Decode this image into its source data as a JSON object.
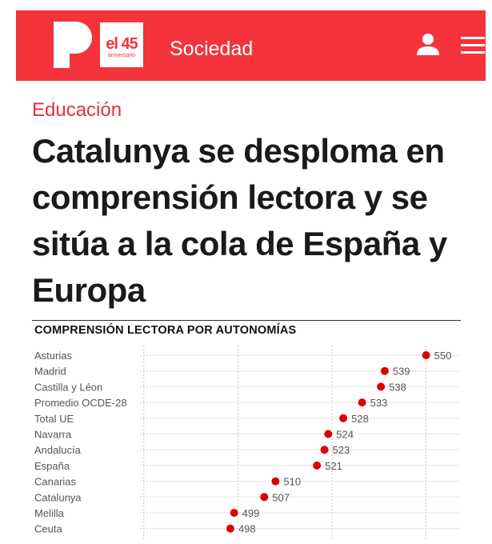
{
  "header": {
    "logo_letter": "P",
    "logo_badge_main": "el 45",
    "logo_badge_sub": "aniversario",
    "section": "Sociedad",
    "icons": [
      "user-icon",
      "hamburger-menu-icon"
    ],
    "background_color": "#f4333b"
  },
  "article": {
    "category": "Educación",
    "headline": "Catalunya se desploma en comprensión lectora y se sitúa a la cola de España y Europa"
  },
  "chart_data": {
    "type": "scatter",
    "title": "COMPRENSIÓN LECTORA POR AUTONOMÍAS",
    "categories": [
      "Asturias",
      "Madrid",
      "Castilla y Léon",
      "Promedio OCDE-28",
      "Total UE",
      "Navarra",
      "Andalucía",
      "España",
      "Canarias",
      "Catalunya",
      "Melilla",
      "Ceuta"
    ],
    "values": [
      550,
      539,
      538,
      533,
      528,
      524,
      523,
      521,
      510,
      507,
      499,
      498
    ],
    "xlim": [
      474,
      559
    ],
    "gridlines_x": [
      475,
      500,
      525,
      550
    ],
    "grid": true,
    "point_color": "#dd0000"
  }
}
